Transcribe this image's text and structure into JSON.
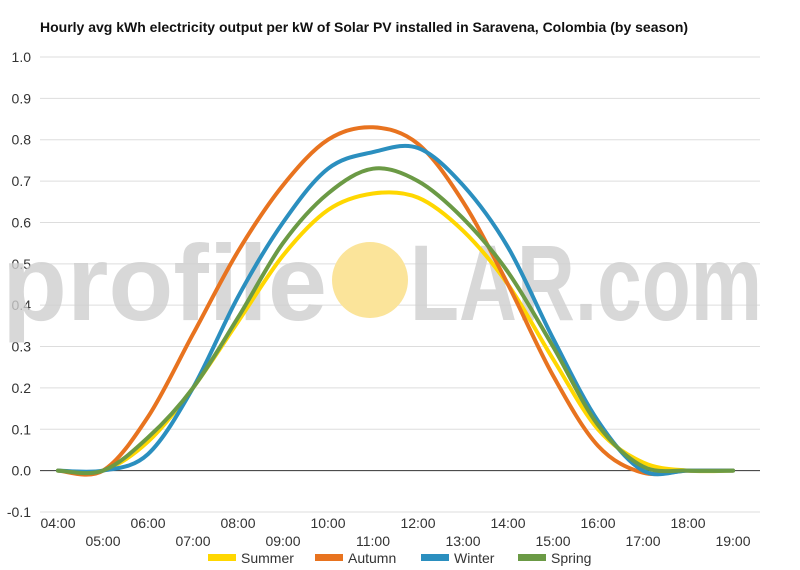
{
  "chart_data": {
    "type": "line",
    "title": "Hourly avg kWh electricity output per kW of Solar PV installed in Saravena, Colombia (by season)",
    "xlabel": "",
    "ylabel": "",
    "ylim": [
      -0.1,
      1.0
    ],
    "yticks": [
      "-0.1",
      "0.0",
      "0.1",
      "0.2",
      "0.3",
      "0.4",
      "0.5",
      "0.6",
      "0.7",
      "0.8",
      "0.9",
      "1.0"
    ],
    "xticks": [
      "04:00",
      "05:00",
      "06:00",
      "07:00",
      "08:00",
      "09:00",
      "10:00",
      "11:00",
      "12:00",
      "13:00",
      "14:00",
      "15:00",
      "16:00",
      "17:00",
      "18:00",
      "19:00"
    ],
    "grid": true,
    "legend_position": "bottom",
    "x": [
      4,
      5,
      6,
      7,
      8,
      9,
      10,
      11,
      12,
      13,
      14,
      15,
      16,
      17,
      18,
      19
    ],
    "series": [
      {
        "name": "Summer",
        "color": "#ffd700",
        "values": [
          0.0,
          0.0,
          0.07,
          0.2,
          0.36,
          0.52,
          0.63,
          0.67,
          0.66,
          0.58,
          0.45,
          0.27,
          0.1,
          0.02,
          0.0,
          0.0
        ]
      },
      {
        "name": "Autumn",
        "color": "#e8731f",
        "values": [
          0.0,
          0.0,
          0.13,
          0.33,
          0.53,
          0.69,
          0.8,
          0.83,
          0.79,
          0.65,
          0.45,
          0.23,
          0.06,
          -0.005,
          0.0,
          0.0
        ]
      },
      {
        "name": "Winter",
        "color": "#2b8fbf",
        "values": [
          0.0,
          0.0,
          0.04,
          0.2,
          0.42,
          0.6,
          0.73,
          0.77,
          0.78,
          0.69,
          0.54,
          0.32,
          0.12,
          0.0,
          0.0,
          0.0
        ]
      },
      {
        "name": "Spring",
        "color": "#6b9a45",
        "values": [
          0.0,
          0.0,
          0.08,
          0.2,
          0.37,
          0.55,
          0.67,
          0.73,
          0.7,
          0.61,
          0.48,
          0.3,
          0.11,
          0.01,
          0.0,
          0.0
        ]
      }
    ]
  },
  "watermark": {
    "text_left": "profile",
    "text_right": "LAR.com",
    "sun_color": "#fbe49a"
  }
}
